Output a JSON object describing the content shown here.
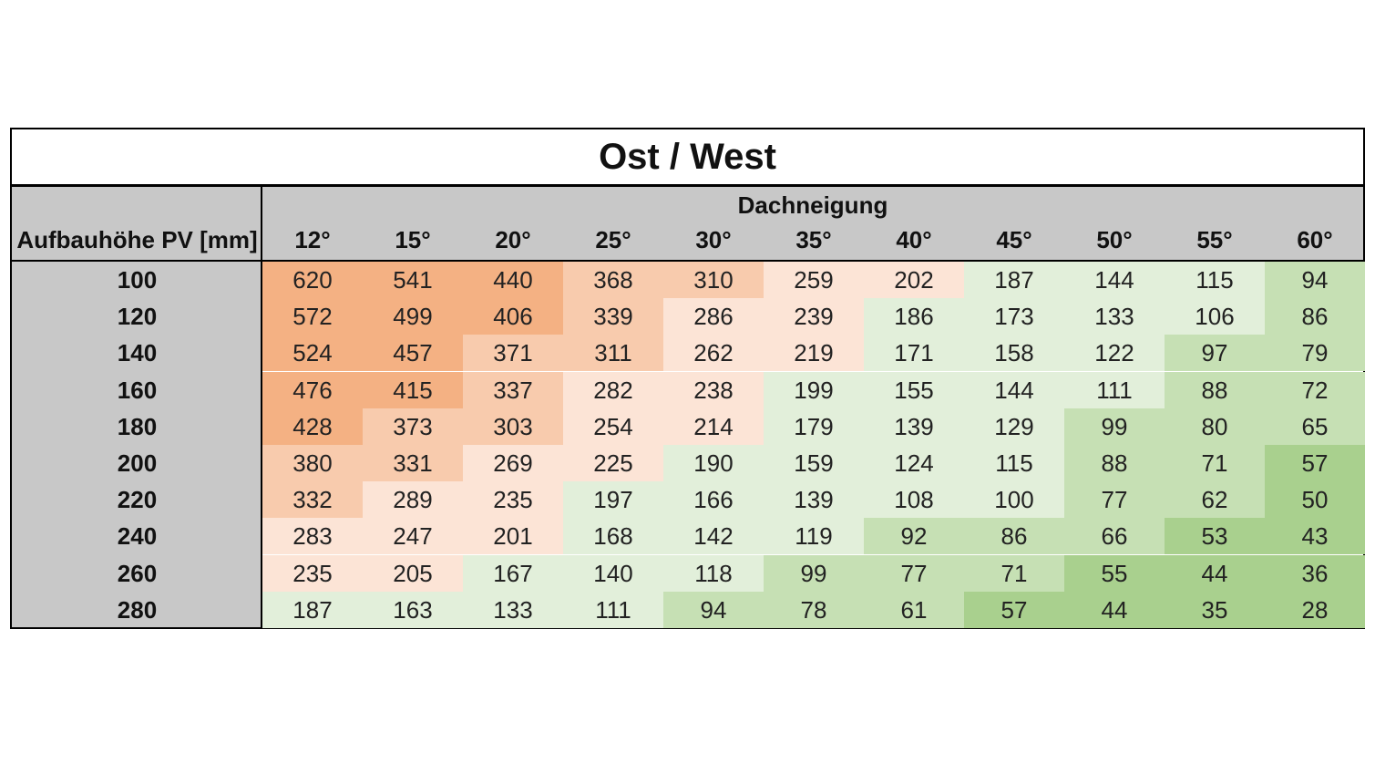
{
  "chart_data": {
    "type": "heatmap",
    "title": "Ost / West",
    "row_header_label": "Aufbauhöhe PV [mm]",
    "column_group_label": "Dachneigung",
    "columns": [
      "12°",
      "15°",
      "20°",
      "25°",
      "30°",
      "35°",
      "40°",
      "45°",
      "50°",
      "55°",
      "60°"
    ],
    "rows": [
      "100",
      "120",
      "140",
      "160",
      "180",
      "200",
      "220",
      "240",
      "260",
      "280"
    ],
    "values": [
      [
        620,
        541,
        440,
        368,
        310,
        259,
        202,
        187,
        144,
        115,
        94
      ],
      [
        572,
        499,
        406,
        339,
        286,
        239,
        186,
        173,
        133,
        106,
        86
      ],
      [
        524,
        457,
        371,
        311,
        262,
        219,
        171,
        158,
        122,
        97,
        79
      ],
      [
        476,
        415,
        337,
        282,
        238,
        199,
        155,
        144,
        111,
        88,
        72
      ],
      [
        428,
        373,
        303,
        254,
        214,
        179,
        139,
        129,
        99,
        80,
        65
      ],
      [
        380,
        331,
        269,
        225,
        190,
        159,
        124,
        115,
        88,
        71,
        57
      ],
      [
        332,
        289,
        235,
        197,
        166,
        139,
        108,
        100,
        77,
        62,
        50
      ],
      [
        283,
        247,
        201,
        168,
        142,
        119,
        92,
        86,
        66,
        53,
        43
      ],
      [
        235,
        205,
        167,
        140,
        118,
        99,
        77,
        71,
        55,
        44,
        36
      ],
      [
        187,
        163,
        133,
        111,
        94,
        78,
        61,
        57,
        44,
        35,
        28
      ]
    ],
    "color_bands": [
      {
        "min": 400,
        "color": "#f4b183"
      },
      {
        "min": 300,
        "color": "#f8cbad"
      },
      {
        "min": 200,
        "color": "#fce4d6"
      },
      {
        "min": 100,
        "color": "#e2efda"
      },
      {
        "min": 60,
        "color": "#c6e0b4"
      },
      {
        "min": 0,
        "color": "#a9d08e"
      }
    ],
    "header_color": "#c8c8c8"
  }
}
